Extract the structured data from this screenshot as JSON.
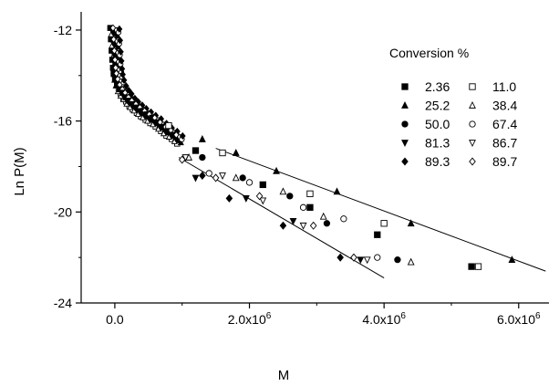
{
  "chart_data": {
    "type": "scatter",
    "title": "",
    "xlabel": "M",
    "ylabel": "Ln P(M)",
    "xlim": [
      -500000,
      6450000
    ],
    "ylim": [
      -24,
      -11.2
    ],
    "x_ticks": [
      {
        "value": 0,
        "label": "0.0"
      },
      {
        "value": 2000000,
        "label": "2.0x10",
        "exp": "6"
      },
      {
        "value": 4000000,
        "label": "4.0x10",
        "exp": "6"
      },
      {
        "value": 6000000,
        "label": "6.0x10",
        "exp": "6"
      }
    ],
    "y_ticks": [
      {
        "value": -12,
        "label": "-12"
      },
      {
        "value": -16,
        "label": "-16"
      },
      {
        "value": -20,
        "label": "-20"
      },
      {
        "value": -24,
        "label": "-24"
      }
    ],
    "legend": {
      "title": "Conversion %",
      "placement": "top-right"
    },
    "series": [
      {
        "name": "2.36",
        "marker": "square-filled",
        "x": [
          1200000,
          2200000,
          2900000,
          3900000,
          5300000
        ],
        "y": [
          -17.3,
          -18.8,
          -19.8,
          -21.0,
          -22.4
        ]
      },
      {
        "name": "11.0",
        "marker": "square-open",
        "x": [
          800000,
          1600000,
          2900000,
          4000000,
          5400000
        ],
        "y": [
          -16.2,
          -17.4,
          -19.2,
          -20.5,
          -22.4
        ]
      },
      {
        "name": "25.2",
        "marker": "triangle-filled",
        "x": [
          1300000,
          1800000,
          2400000,
          3300000,
          4400000,
          5900000
        ],
        "y": [
          -16.8,
          -17.4,
          -18.2,
          -19.1,
          -20.5,
          -22.1
        ]
      },
      {
        "name": "38.4",
        "marker": "triangle-open",
        "x": [
          1100000,
          1800000,
          2500000,
          3100000,
          4400000
        ],
        "y": [
          -17.6,
          -18.5,
          -19.1,
          -20.2,
          -22.2
        ]
      },
      {
        "name": "50.0",
        "marker": "circle-filled",
        "x": [
          1300000,
          1900000,
          2600000,
          3150000,
          4200000
        ],
        "y": [
          -17.6,
          -18.5,
          -19.3,
          -20.5,
          -22.1
        ]
      },
      {
        "name": "67.4",
        "marker": "circle-open",
        "x": [
          1400000,
          2000000,
          2800000,
          3400000,
          3900000
        ],
        "y": [
          -18.3,
          -18.7,
          -19.8,
          -20.3,
          -22.0
        ]
      },
      {
        "name": "81.3",
        "marker": "triangle-down-filled",
        "x": [
          1200000,
          1950000,
          2650000,
          3650000
        ],
        "y": [
          -18.5,
          -19.4,
          -20.4,
          -22.1
        ]
      },
      {
        "name": "86.7",
        "marker": "triangle-down-open",
        "x": [
          1050000,
          1600000,
          2200000,
          2800000,
          3750000
        ],
        "y": [
          -17.6,
          -18.4,
          -19.5,
          -20.6,
          -22.1
        ]
      },
      {
        "name": "89.3",
        "marker": "diamond-filled",
        "x": [
          1300000,
          1700000,
          2500000,
          3350000
        ],
        "y": [
          -18.4,
          -19.4,
          -20.6,
          -22.0
        ]
      },
      {
        "name": "89.7",
        "marker": "diamond-open",
        "x": [
          1000000,
          1500000,
          2150000,
          2950000,
          3550000
        ],
        "y": [
          -17.7,
          -18.5,
          -19.3,
          -20.6,
          -22.0
        ]
      }
    ],
    "initial_curve": {
      "description": "dense overlapping markers of all series along the steep initial decay",
      "x": [
        0,
        10000,
        20000,
        30000,
        40000,
        50000,
        70000,
        100000,
        140000,
        180000,
        230000,
        280000,
        340000,
        400000,
        470000,
        540000,
        620000,
        700000,
        780000,
        860000,
        940000
      ],
      "y": [
        -12.1,
        -12.6,
        -13.1,
        -13.5,
        -13.85,
        -14.1,
        -14.35,
        -14.6,
        -14.8,
        -14.95,
        -15.15,
        -15.3,
        -15.45,
        -15.6,
        -15.75,
        -15.9,
        -16.05,
        -16.25,
        -16.45,
        -16.6,
        -16.8
      ]
    },
    "fit_lines": [
      {
        "x": [
          1500000,
          6400000
        ],
        "y": [
          -17.2,
          -22.6
        ]
      },
      {
        "x": [
          950000,
          4000000
        ],
        "y": [
          -17.6,
          -22.9
        ]
      }
    ]
  }
}
